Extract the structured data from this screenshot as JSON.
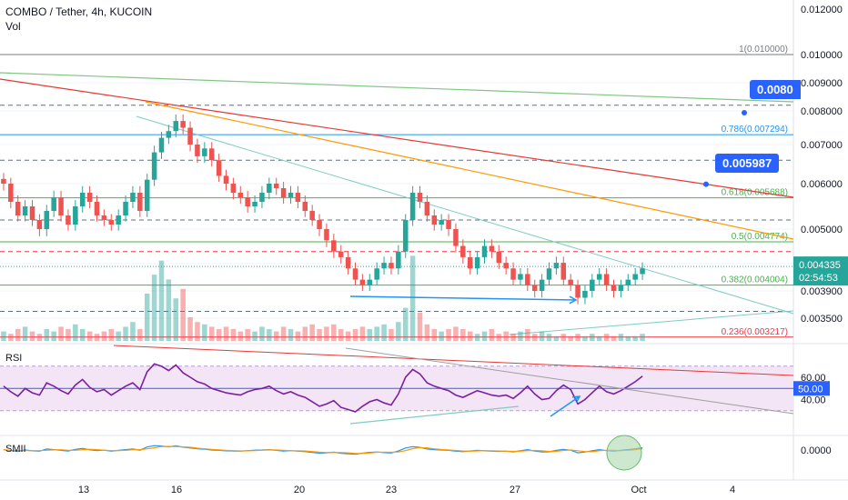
{
  "header": {
    "symbol": "COMBO / Tether, 4h, KUCOIN",
    "volume_label": "Vol"
  },
  "colors": {
    "up": "#26a69a",
    "down": "#ef5350",
    "rsi_line": "#7b1fa2",
    "rsi_band": "#f3e5f5",
    "fib_gray": "#787b86",
    "fib_blue": "#2196f3",
    "fib_green": "#4caf50",
    "fib_red": "#f23645",
    "trend_red": "#e53935",
    "trend_orange": "#ff9800",
    "trend_green": "#81c784",
    "trend_teal": "#80cbc4",
    "arrow_blue": "#2196f3",
    "accent": "#2962ff",
    "smii_macd": "#2196f3",
    "smii_signal": "#ff9800"
  },
  "price_axis": {
    "ticks": [
      "0.012000",
      "0.010000",
      "0.009000",
      "0.008000",
      "0.007000",
      "0.006000",
      "0.005000",
      "0.003900",
      "0.003500"
    ],
    "current_price": "0.004335",
    "countdown": "02:54:53"
  },
  "fib_levels": [
    {
      "label": "1(0.010000)",
      "value": 0.01,
      "color": "#787b86"
    },
    {
      "label": "0.786(0.007294)",
      "value": 0.007294,
      "color": "#2196f3"
    },
    {
      "label": "0.618(0.005688)",
      "value": 0.005688,
      "color": "#4caf50"
    },
    {
      "label": "0.5(0.004774)",
      "value": 0.004774,
      "color": "#4caf50"
    },
    {
      "label": "0.382(0.004004)",
      "value": 0.004004,
      "color": "#4caf50"
    },
    {
      "label": "0.236(0.003217)",
      "value": 0.003217,
      "color": "#f23645"
    }
  ],
  "callouts": [
    {
      "text": "0.005987",
      "value": 0.005987
    },
    {
      "text": "0.0080",
      "value": 0.008
    }
  ],
  "rsi": {
    "label": "RSI",
    "ticks": [
      "60.00",
      "40.00"
    ],
    "current": "50.00"
  },
  "smii": {
    "label": "SMII",
    "tick": "0.0000"
  },
  "x_axis": {
    "ticks": [
      "13",
      "16",
      "20",
      "23",
      "27",
      "Oct",
      "4"
    ]
  },
  "chart_data": {
    "type": "candlestick",
    "title": "COMBO / Tether, 4h, KUCOIN",
    "ylim": [
      0.0032,
      0.012
    ],
    "x": [
      "13",
      "16",
      "20",
      "23",
      "27",
      "Oct",
      "4"
    ],
    "close_path": [
      0.006,
      0.0056,
      0.0053,
      0.0055,
      0.0052,
      0.005,
      0.0054,
      0.0057,
      0.0053,
      0.0051,
      0.0055,
      0.0058,
      0.0056,
      0.0053,
      0.0052,
      0.0051,
      0.0053,
      0.0056,
      0.0058,
      0.0054,
      0.0061,
      0.0068,
      0.0072,
      0.0074,
      0.0077,
      0.0075,
      0.007,
      0.0067,
      0.0069,
      0.0066,
      0.0062,
      0.006,
      0.0058,
      0.0057,
      0.0055,
      0.0056,
      0.0058,
      0.006,
      0.0059,
      0.0057,
      0.0058,
      0.0056,
      0.0054,
      0.0052,
      0.005,
      0.0048,
      0.0046,
      0.0045,
      0.0043,
      0.0041,
      0.004,
      0.0041,
      0.0043,
      0.0044,
      0.0043,
      0.0046,
      0.0052,
      0.0058,
      0.0056,
      0.0053,
      0.0051,
      0.0052,
      0.005,
      0.0047,
      0.0045,
      0.0043,
      0.0045,
      0.0047,
      0.0046,
      0.0044,
      0.0043,
      0.0041,
      0.0042,
      0.004,
      0.0039,
      0.0041,
      0.0043,
      0.0044,
      0.0041,
      0.004,
      0.0038,
      0.0039,
      0.0041,
      0.0042,
      0.004,
      0.0039,
      0.004,
      0.0041,
      0.0042,
      0.0043
    ],
    "volume_path": [
      4,
      3,
      5,
      6,
      4,
      3,
      5,
      4,
      6,
      5,
      7,
      5,
      4,
      3,
      4,
      5,
      4,
      6,
      8,
      5,
      20,
      28,
      34,
      26,
      18,
      22,
      10,
      8,
      7,
      6,
      5,
      6,
      5,
      4,
      5,
      4,
      6,
      5,
      4,
      6,
      5,
      4,
      6,
      7,
      5,
      6,
      7,
      5,
      4,
      5,
      6,
      5,
      6,
      7,
      5,
      8,
      14,
      36,
      12,
      7,
      5,
      4,
      5,
      6,
      5,
      4,
      3,
      4,
      5,
      3,
      4,
      3,
      4,
      5,
      3,
      4,
      3,
      2,
      3,
      2,
      3,
      2,
      3,
      2,
      3,
      2,
      3,
      2,
      2,
      3
    ],
    "rsi_path": [
      52,
      47,
      43,
      50,
      46,
      44,
      55,
      52,
      48,
      45,
      53,
      58,
      51,
      47,
      49,
      44,
      48,
      52,
      55,
      49,
      65,
      72,
      70,
      66,
      71,
      64,
      60,
      56,
      54,
      50,
      48,
      46,
      45,
      44,
      47,
      49,
      50,
      52,
      48,
      45,
      47,
      44,
      42,
      38,
      34,
      36,
      39,
      33,
      31,
      29,
      34,
      38,
      40,
      37,
      35,
      45,
      60,
      67,
      63,
      55,
      52,
      50,
      48,
      44,
      42,
      45,
      48,
      46,
      44,
      43,
      44,
      41,
      46,
      52,
      45,
      40,
      41,
      48,
      53,
      49,
      36,
      40,
      46,
      52,
      47,
      45,
      48,
      52,
      56,
      61
    ]
  }
}
